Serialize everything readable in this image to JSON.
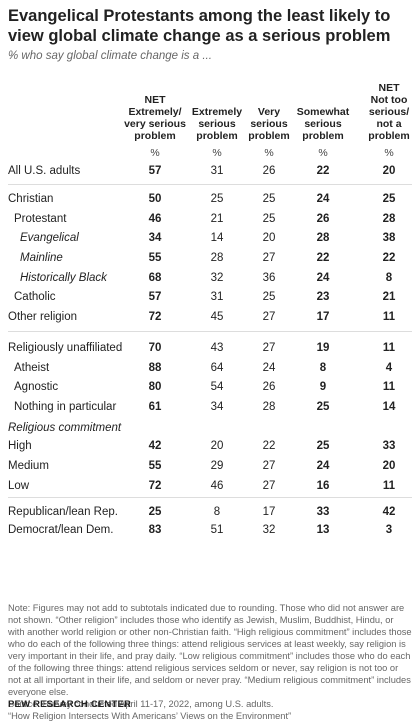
{
  "title": "Evangelical Protestants among the least likely to view global climate change as a serious problem",
  "subtitle": "% who say global climate change is a ...",
  "columns": [
    {
      "lines": [
        "NET",
        "Extremely/",
        "very serious",
        "problem"
      ],
      "bold": true
    },
    {
      "lines": [
        "Extremely",
        "serious",
        "problem"
      ],
      "bold": false
    },
    {
      "lines": [
        "Very",
        "serious",
        "problem"
      ],
      "bold": false
    },
    {
      "lines": [
        "Somewhat",
        "serious",
        "problem"
      ],
      "bold": true
    },
    {
      "lines": [
        "NET",
        "Not too",
        "serious/",
        "not a",
        "problem"
      ],
      "bold": true
    }
  ],
  "pct_symbol": "%",
  "chart_data": {
    "type": "table",
    "title": "Evangelical Protestants among the least likely to view global climate change as a serious problem",
    "subtitle": "% who say global climate change is a ...",
    "columns": [
      "NET Extremely/ very serious problem",
      "Extremely serious problem",
      "Very serious problem",
      "Somewhat serious problem",
      "NET Not too serious/ not a problem"
    ],
    "rows": [
      {
        "label": "All U.S. adults",
        "indent": 0,
        "italic": false,
        "values": [
          57,
          31,
          26,
          22,
          20
        ]
      },
      {
        "label": "Christian",
        "indent": 0,
        "italic": false,
        "values": [
          50,
          25,
          25,
          24,
          25
        ]
      },
      {
        "label": "Protestant",
        "indent": 1,
        "italic": false,
        "values": [
          46,
          21,
          25,
          26,
          28
        ]
      },
      {
        "label": "Evangelical",
        "indent": 2,
        "italic": true,
        "values": [
          34,
          14,
          20,
          28,
          38
        ]
      },
      {
        "label": "Mainline",
        "indent": 2,
        "italic": true,
        "values": [
          55,
          28,
          27,
          22,
          22
        ]
      },
      {
        "label": "Historically Black",
        "indent": 2,
        "italic": true,
        "values": [
          68,
          32,
          36,
          24,
          8
        ]
      },
      {
        "label": "Catholic",
        "indent": 1,
        "italic": false,
        "values": [
          57,
          31,
          25,
          23,
          21
        ]
      },
      {
        "label": "Other religion",
        "indent": 0,
        "italic": false,
        "values": [
          72,
          45,
          27,
          17,
          11
        ]
      },
      {
        "label": "Religiously unaffiliated",
        "indent": 0,
        "italic": false,
        "values": [
          70,
          43,
          27,
          19,
          11
        ]
      },
      {
        "label": "Atheist",
        "indent": 1,
        "italic": false,
        "values": [
          88,
          64,
          24,
          8,
          4
        ]
      },
      {
        "label": "Agnostic",
        "indent": 1,
        "italic": false,
        "values": [
          80,
          54,
          26,
          9,
          11
        ]
      },
      {
        "label": "Nothing in particular",
        "indent": 1,
        "italic": false,
        "values": [
          61,
          34,
          28,
          25,
          14
        ]
      },
      {
        "label": "Religious commitment",
        "indent": 0,
        "italic": true,
        "heading": true,
        "values": []
      },
      {
        "label": "High",
        "indent": 0,
        "italic": false,
        "values": [
          42,
          20,
          22,
          25,
          33
        ]
      },
      {
        "label": "Medium",
        "indent": 0,
        "italic": false,
        "values": [
          55,
          29,
          27,
          24,
          20
        ]
      },
      {
        "label": "Low",
        "indent": 0,
        "italic": false,
        "values": [
          72,
          46,
          27,
          16,
          11
        ]
      },
      {
        "label": "Republican/lean Rep.",
        "indent": 0,
        "italic": false,
        "values": [
          25,
          8,
          17,
          33,
          42
        ]
      },
      {
        "label": "Democrat/lean Dem.",
        "indent": 0,
        "italic": false,
        "values": [
          83,
          51,
          32,
          13,
          3
        ]
      }
    ]
  },
  "notes": [
    "Note: Figures may not add to subtotals indicated due to rounding. Those who did not answer are not shown. “Other religion” includes those who identify as Jewish, Muslim, Buddhist, Hindu, or with another world religion or other non-Christian faith. “High religious commitment” includes those who do each of the following three things: attend religious services at least weekly, say religion is very important in their life, and pray daily. “Low religious commitment” includes those who do each of the following three things: attend religious services seldom or never, say religion is not too or not at all important in their life, and seldom or never pray. “Medium religious commitment” includes everyone else.",
    "Source: Survey conducted April 11-17, 2022, among U.S. adults.",
    "“How Religion Intersects With Americans’ Views on the Environment”"
  ],
  "footer": "PEW RESEARCH CENTER"
}
